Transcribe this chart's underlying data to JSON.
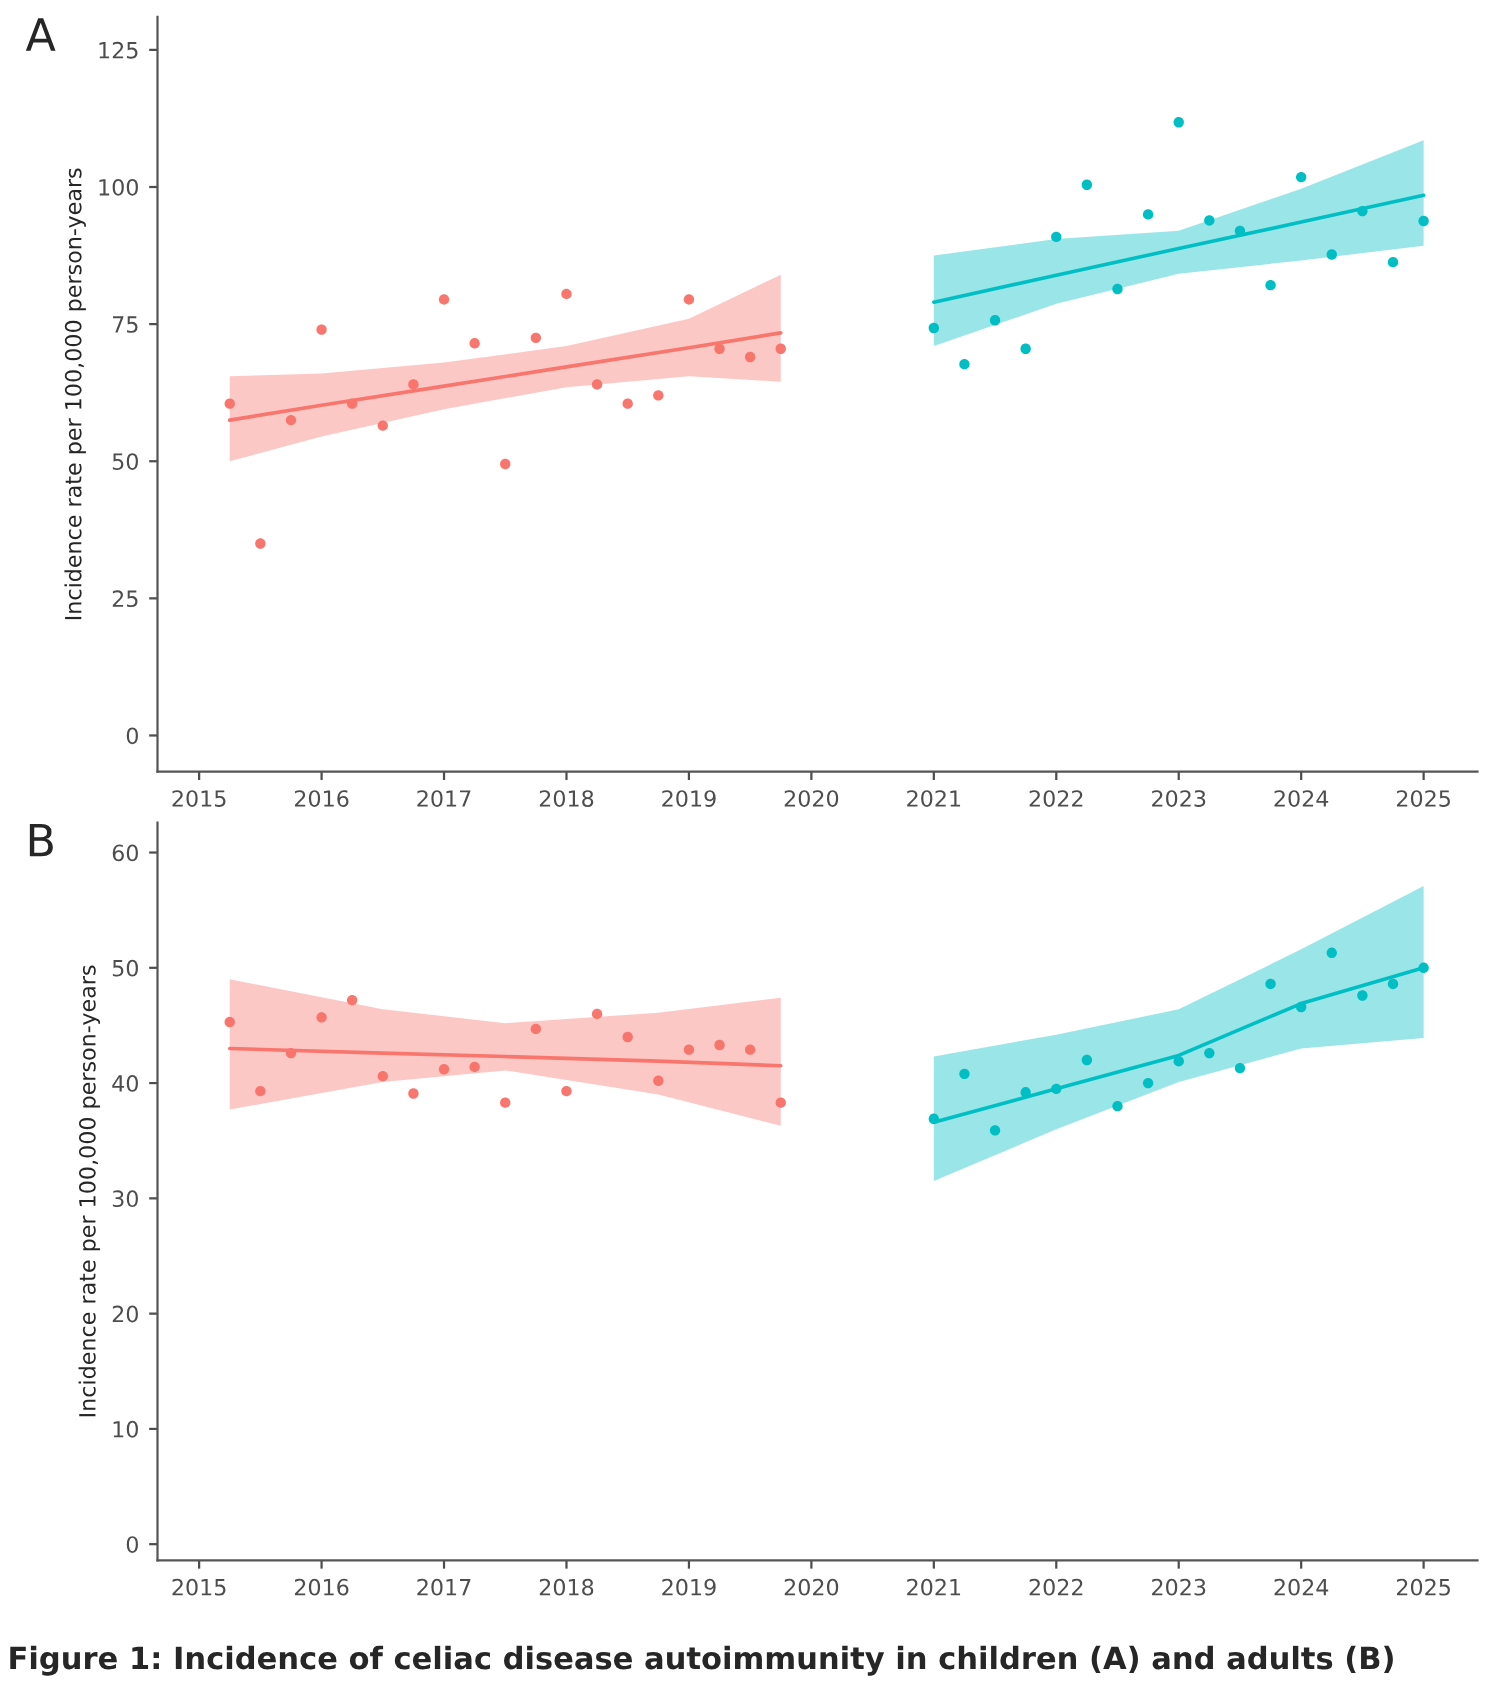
{
  "chart_data": [
    {
      "type": "scatter",
      "ylabel": "Incidence rate per 100,000 person-years",
      "annotations": [
        "A"
      ],
      "xlim": [
        2014.66,
        2025.44
      ],
      "ylim": [
        -6.6,
        131
      ],
      "xticks": [
        2015,
        2016,
        2017,
        2018,
        2019,
        2020,
        2021,
        2022,
        2023,
        2024,
        2025
      ],
      "yticks": [
        0,
        25,
        50,
        75,
        100,
        125
      ],
      "grid": false,
      "legend": false,
      "series": [
        {
          "marker": "circle",
          "color": "#f8766d",
          "x": [
            2015.25,
            2015.5,
            2015.75,
            2016,
            2016.25,
            2016.5,
            2016.75,
            2017,
            2017.25,
            2017.5,
            2017.75,
            2018,
            2018.25,
            2018.5,
            2018.75,
            2019,
            2019.25,
            2019.5,
            2019.75
          ],
          "values": [
            60.5,
            35,
            57.5,
            74,
            60.5,
            56.5,
            64,
            79.5,
            71.5,
            49.5,
            72.5,
            80.5,
            64,
            60.5,
            62,
            79.5,
            70.5,
            69,
            70.5
          ]
        },
        {
          "type": "line",
          "marker": "none",
          "color": "#f8766d",
          "x": [
            2015.25,
            2016,
            2017,
            2018,
            2019,
            2019.75
          ],
          "values": [
            57.5,
            60.2,
            63.7,
            67.2,
            70.7,
            73.4
          ],
          "lower": [
            50,
            54.5,
            59.5,
            63.5,
            65.5,
            64.5
          ],
          "upper": [
            65.5,
            66,
            68,
            71,
            76,
            84
          ]
        },
        {
          "marker": "circle",
          "color": "#00bfc4",
          "x": [
            2021,
            2021.25,
            2021.5,
            2021.75,
            2022,
            2022.25,
            2022.5,
            2022.75,
            2023,
            2023.25,
            2023.5,
            2023.75,
            2024,
            2024.25,
            2024.5,
            2024.75,
            2025
          ],
          "values": [
            74.3,
            67.7,
            75.7,
            70.5,
            90.9,
            100.4,
            81.4,
            95,
            111.8,
            93.9,
            92,
            82.1,
            101.8,
            87.7,
            95.6,
            86.3,
            93.8
          ]
        },
        {
          "type": "line",
          "marker": "none",
          "color": "#00bfc4",
          "x": [
            2021,
            2022,
            2023,
            2024,
            2025
          ],
          "values": [
            79,
            83.9,
            88.8,
            93.6,
            98.5
          ],
          "lower": [
            71,
            78.7,
            84.2,
            86.6,
            89.3
          ],
          "upper": [
            87.5,
            90.5,
            92,
            99.7,
            108.5
          ]
        }
      ]
    },
    {
      "type": "scatter",
      "ylabel": "Incidence rate per 100,000 person-years",
      "annotations": [
        "B",
        "Figure 1: Incidence of celiac disease autoimmunity in children (A) and adults (B)"
      ],
      "xlim": [
        2014.66,
        2025.44
      ],
      "ylim": [
        -1.4,
        62.6
      ],
      "xticks": [
        2015,
        2016,
        2017,
        2018,
        2019,
        2020,
        2021,
        2022,
        2023,
        2024,
        2025
      ],
      "yticks": [
        0,
        10,
        20,
        30,
        40,
        50,
        60
      ],
      "grid": false,
      "legend": false,
      "series": [
        {
          "marker": "circle",
          "color": "#f8766d",
          "x": [
            2015.25,
            2015.5,
            2015.75,
            2016,
            2016.25,
            2016.5,
            2016.75,
            2017,
            2017.25,
            2017.5,
            2017.75,
            2018,
            2018.25,
            2018.5,
            2018.75,
            2019,
            2019.25,
            2019.5,
            2019.75
          ],
          "values": [
            45.3,
            39.3,
            42.6,
            45.7,
            47.2,
            40.6,
            39.1,
            41.2,
            41.4,
            38.3,
            44.7,
            39.3,
            46,
            44,
            40.2,
            42.9,
            43.3,
            42.9,
            38.3
          ]
        },
        {
          "type": "line",
          "marker": "none",
          "color": "#f8766d",
          "x": [
            2015.25,
            2016.5,
            2017.5,
            2018.75,
            2019.75
          ],
          "values": [
            43,
            42.6,
            42.3,
            41.9,
            41.5
          ],
          "lower": [
            37.7,
            40.1,
            41.1,
            39,
            36.3
          ],
          "upper": [
            49,
            46.4,
            45.2,
            46.1,
            47.4
          ]
        },
        {
          "marker": "circle",
          "color": "#00bfc4",
          "x": [
            2021,
            2021.25,
            2021.5,
            2021.75,
            2022,
            2022.25,
            2022.5,
            2022.75,
            2023,
            2023.25,
            2023.5,
            2023.75,
            2024,
            2024.25,
            2024.5,
            2024.75,
            2025
          ],
          "values": [
            36.9,
            40.8,
            35.9,
            39.2,
            39.5,
            42,
            38,
            40,
            41.9,
            42.6,
            41.3,
            48.6,
            46.6,
            51.3,
            47.6,
            48.6,
            50
          ]
        },
        {
          "type": "line",
          "marker": "none",
          "color": "#00bfc4",
          "x": [
            2021,
            2022,
            2023,
            2024,
            2025
          ],
          "values": [
            36.6,
            39.5,
            42.4,
            46.9,
            50
          ],
          "lower": [
            31.5,
            36,
            40.1,
            43,
            43.9
          ],
          "upper": [
            42.3,
            44.2,
            46.4,
            51.6,
            57.1
          ]
        }
      ]
    }
  ]
}
